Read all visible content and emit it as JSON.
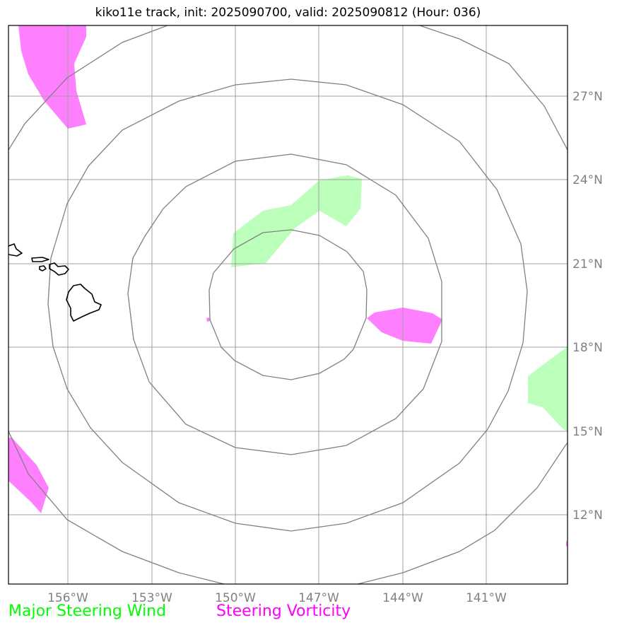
{
  "title": "kiko11e track, init: 2025090700, valid: 2025090812 (Hour: 036)",
  "lon_labels": [
    "156°W",
    "153°W",
    "150°W",
    "147°W",
    "144°W",
    "141°W"
  ],
  "lat_labels": [
    "27°N",
    "24°N",
    "21°N",
    "18°N",
    "15°N",
    "12°N"
  ],
  "legend": {
    "wind_label": "Major Steering Wind",
    "wind_color": "#00ff00",
    "vort_label": "Steering Vorticity",
    "vort_color": "#ff00ff"
  },
  "colors": {
    "wind_fill": "#bbffbb",
    "vort_fill": "#ff80ff",
    "range_ring": "#808080",
    "grid": "#a0a0a0",
    "coast": "#000000"
  },
  "range_rings_count": 4
}
